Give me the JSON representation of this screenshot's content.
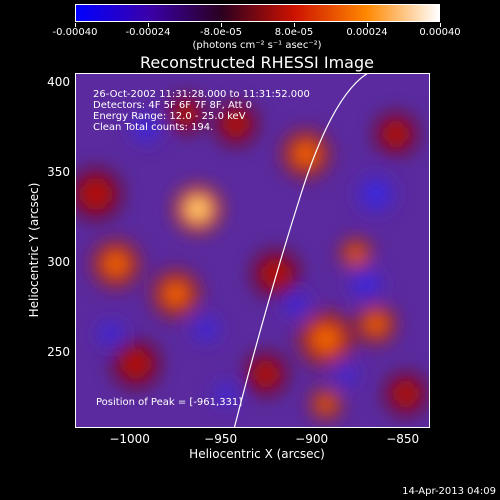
{
  "colorbar": {
    "tick_labels": [
      "-0.00040",
      "-0.00024",
      "-8.0e-05",
      "8.0e-05",
      "0.00024",
      "0.00040"
    ],
    "units_label": "(photons cm⁻² s⁻¹ asec⁻²)",
    "colors": [
      "#0000ff",
      "#3a00aa",
      "#2a0020",
      "#cc1100",
      "#ff8800",
      "#ffffff"
    ]
  },
  "plot": {
    "title": "Reconstructed RHESSI Image",
    "info": {
      "time_range": "26-Oct-2002 11:31:28.000 to 11:31:52.000",
      "detectors": "Detectors: 4F 5F 6F 7F 8F, Att 0",
      "energy_range": "Energy Range: 12.0 - 25.0 keV",
      "clean_counts": "Clean    Total counts: 194."
    },
    "peak_label": "Position of Peak = [-961,331]",
    "x_axis": {
      "label": "Heliocentric X (arcsec)",
      "ticks": [
        "-1000",
        "-950",
        "-900",
        "-850"
      ],
      "range": [
        -1030,
        -835
      ]
    },
    "y_axis": {
      "label": "Heliocentric Y (arcsec)",
      "ticks": [
        "250",
        "300",
        "350",
        "400"
      ],
      "range": [
        208,
        405
      ]
    }
  },
  "footer": {
    "timestamp": "14-Apr-2013 04:09"
  }
}
